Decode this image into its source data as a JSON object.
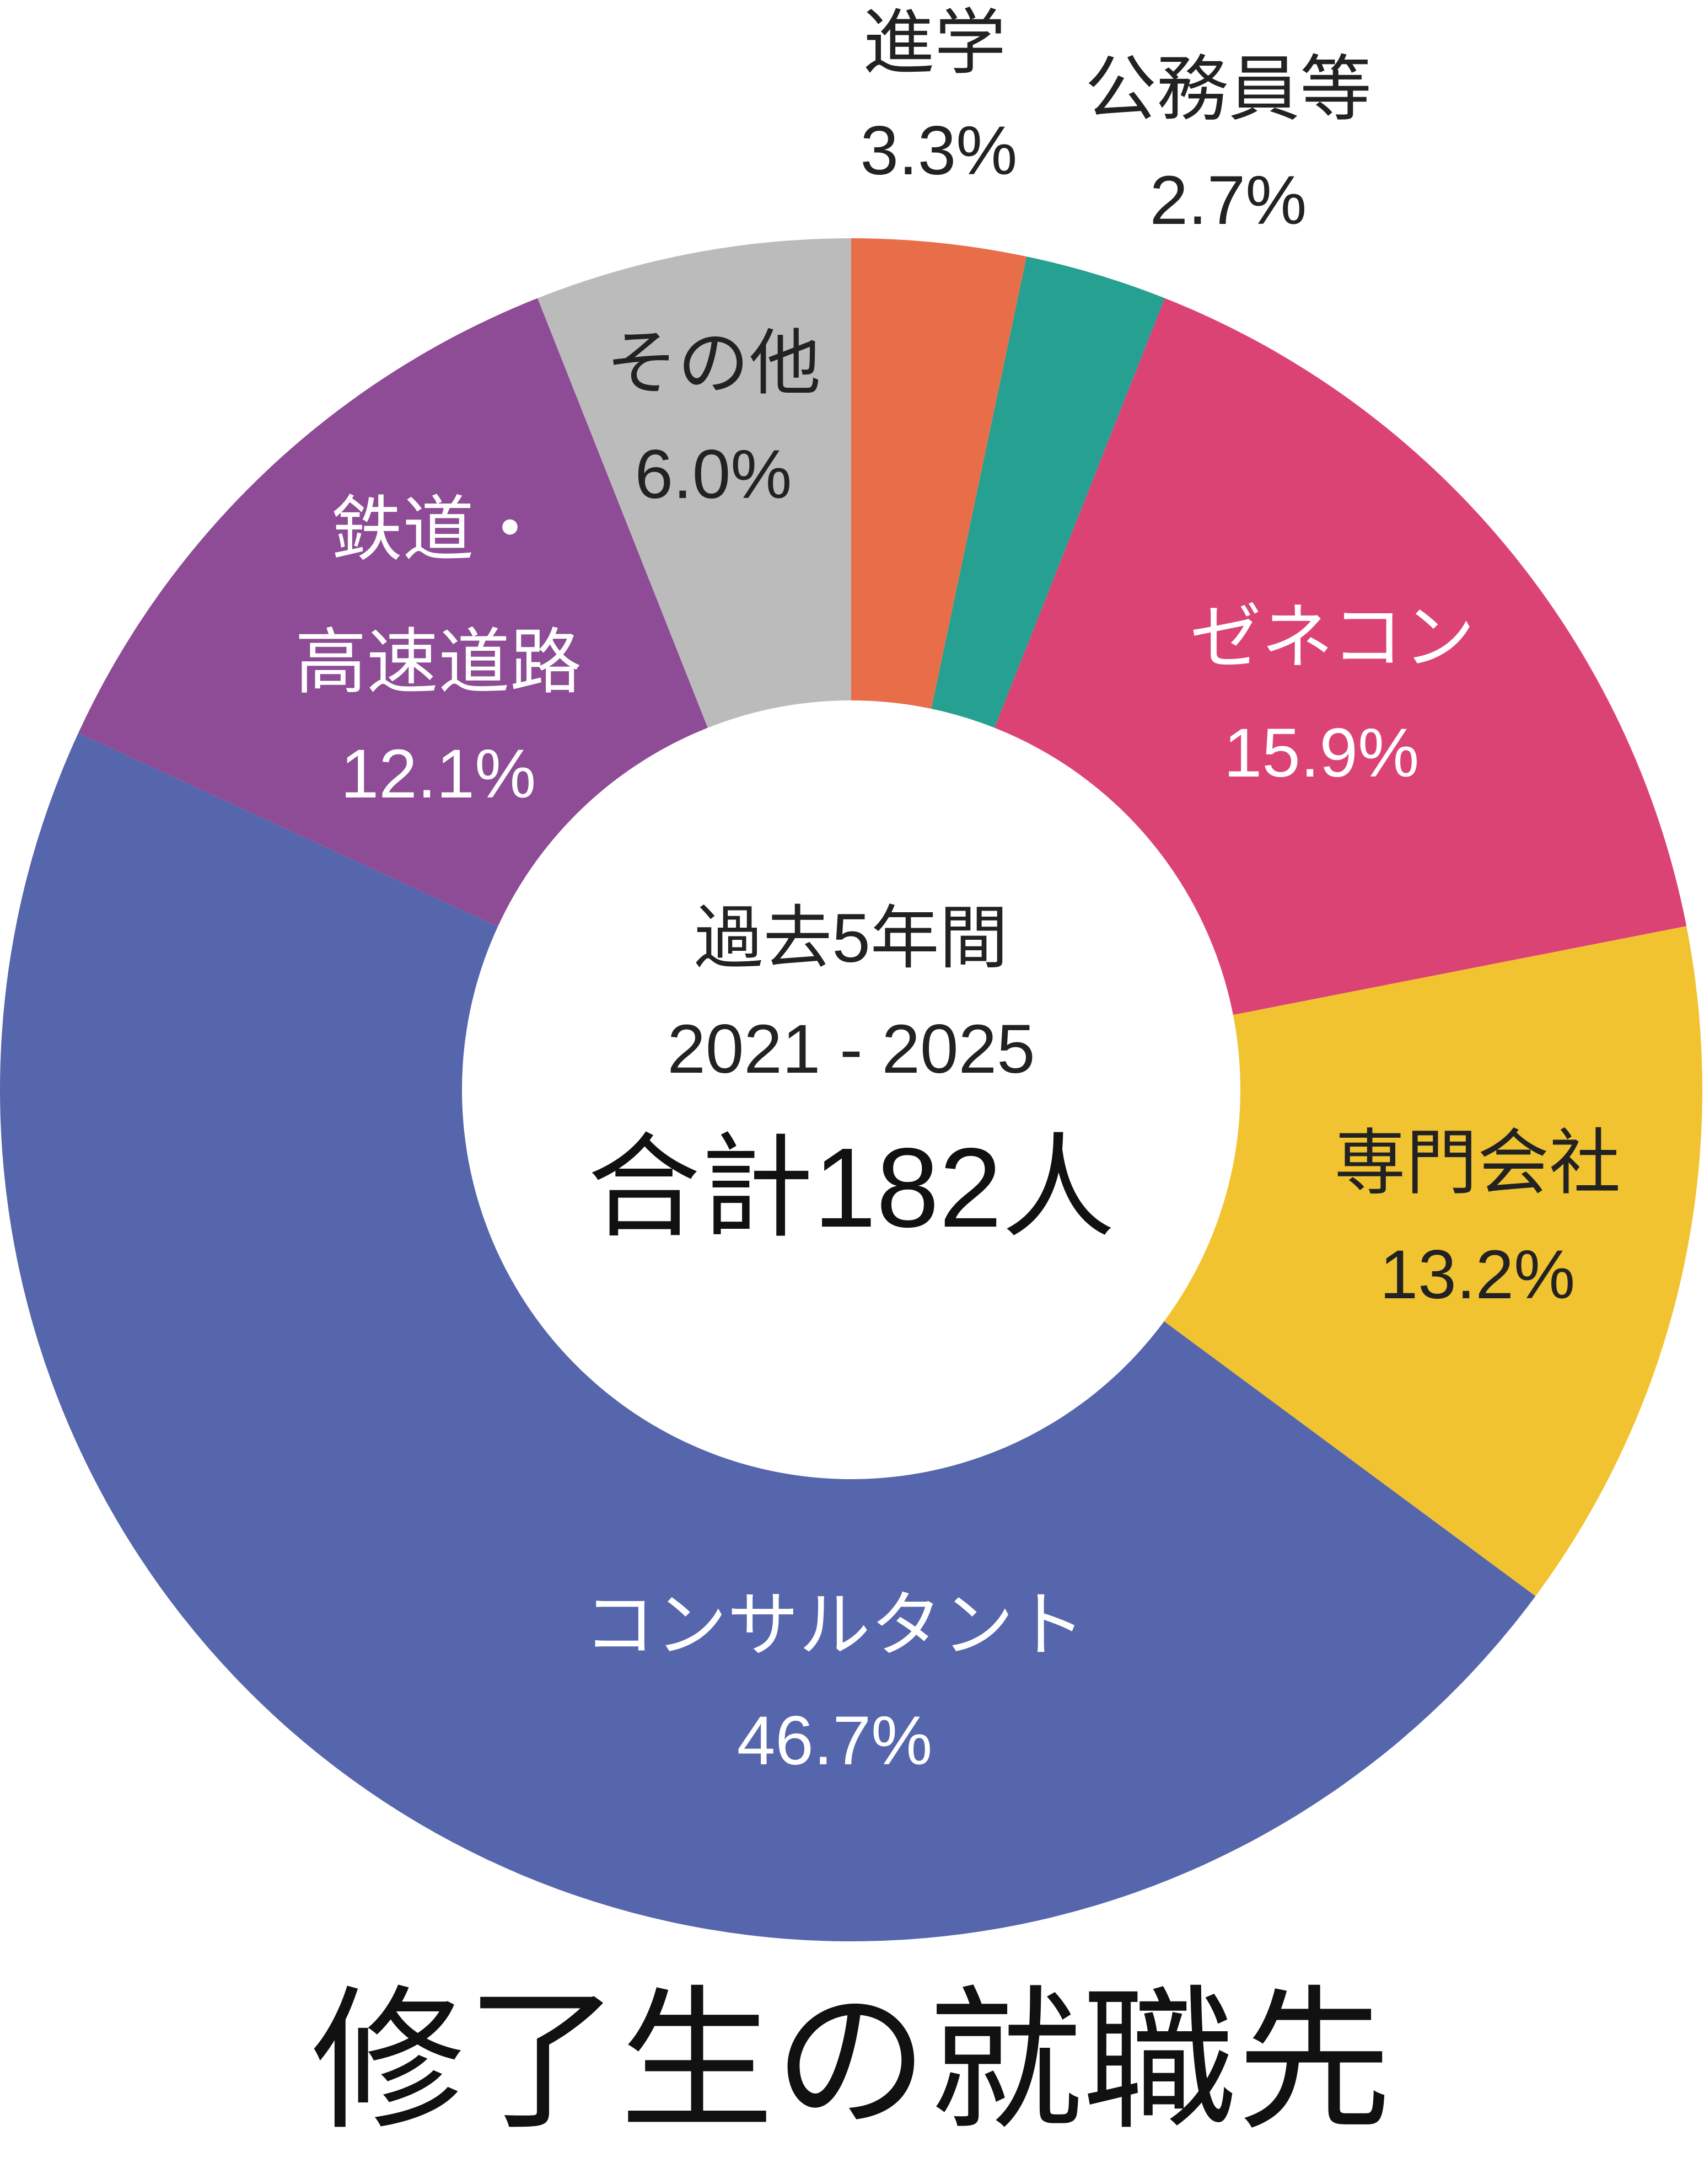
{
  "chart_data": {
    "type": "donut",
    "title": "修了生の就職先",
    "center_lines": [
      "過去5年間",
      "2021 - 2025",
      "合計182人"
    ],
    "categories": [
      "進学",
      "公務員等",
      "ゼネコン",
      "専門会社",
      "コンサルタント",
      "鉄道・\n高速道路",
      "その他"
    ],
    "values": [
      3.3,
      2.7,
      15.9,
      13.2,
      46.7,
      12.1,
      6.0
    ],
    "value_labels": [
      "3.3%",
      "2.7%",
      "15.9%",
      "13.2%",
      "46.7%",
      "12.1%",
      "6.0%"
    ],
    "colors": [
      "#e86e4a",
      "#26a091",
      "#dc4375",
      "#f2c330",
      "#5666ad",
      "#8e4b96",
      "#bbbbbb"
    ]
  }
}
